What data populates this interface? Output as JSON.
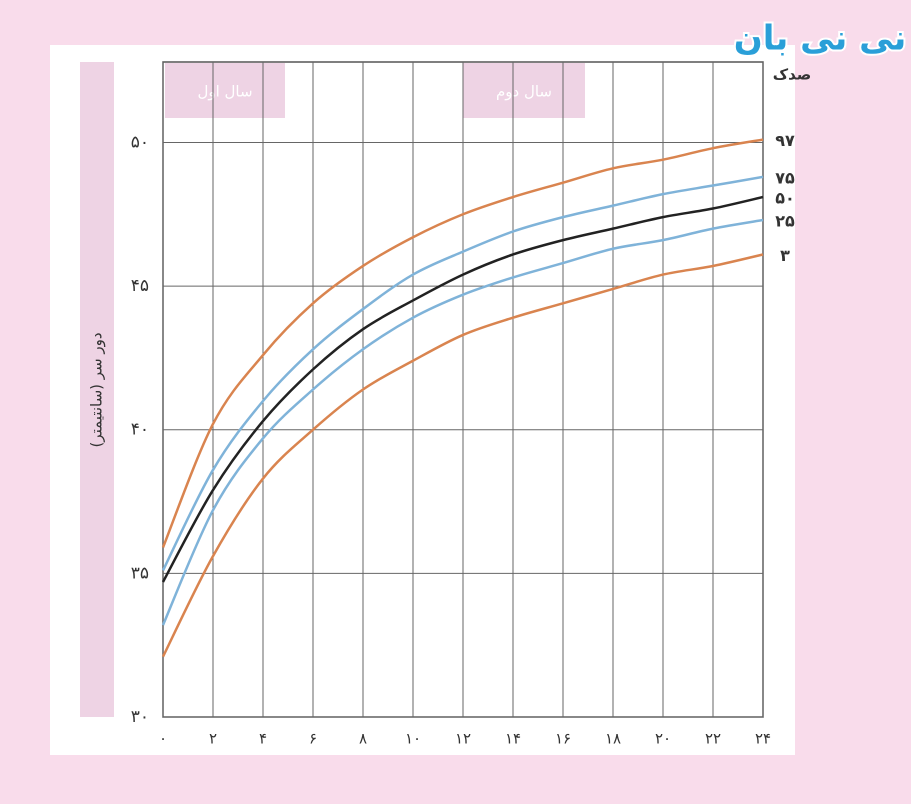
{
  "logo": "نی نی بان",
  "chart_data": {
    "type": "line",
    "y_title": "دور سر (سانتیمتر)",
    "legend_title": "صدک",
    "period_labels": [
      "سال اول",
      "سال دوم"
    ],
    "x": [
      0,
      2,
      4,
      6,
      8,
      10,
      12,
      14,
      16,
      18,
      20,
      22,
      24
    ],
    "xlim": [
      0,
      24
    ],
    "xticks": [
      {
        "value": 0,
        "label": "۰"
      },
      {
        "value": 2,
        "label": "۲"
      },
      {
        "value": 4,
        "label": "۴"
      },
      {
        "value": 6,
        "label": "۶"
      },
      {
        "value": 8,
        "label": "۸"
      },
      {
        "value": 10,
        "label": "۱۰"
      },
      {
        "value": 12,
        "label": "۱۲"
      },
      {
        "value": 14,
        "label": "۱۴"
      },
      {
        "value": 16,
        "label": "۱۶"
      },
      {
        "value": 18,
        "label": "۱۸"
      },
      {
        "value": 20,
        "label": "۲۰"
      },
      {
        "value": 22,
        "label": "۲۲"
      },
      {
        "value": 24,
        "label": "۲۴"
      }
    ],
    "ylim": [
      30,
      52.8
    ],
    "yticks": [
      {
        "value": 30,
        "label": "۳۰"
      },
      {
        "value": 35,
        "label": "۳۵"
      },
      {
        "value": 40,
        "label": "۴۰"
      },
      {
        "value": 45,
        "label": "۴۵"
      },
      {
        "value": 50,
        "label": "۵۰"
      }
    ],
    "grid": true,
    "series": [
      {
        "name": "۹۷",
        "color": "#d9844f",
        "values": [
          35.9,
          40.2,
          42.6,
          44.4,
          45.7,
          46.7,
          47.5,
          48.1,
          48.6,
          49.1,
          49.4,
          49.8,
          50.1
        ]
      },
      {
        "name": "۷۵",
        "color": "#7fb3d9",
        "values": [
          35.1,
          38.6,
          41.0,
          42.8,
          44.2,
          45.4,
          46.2,
          46.9,
          47.4,
          47.8,
          48.2,
          48.5,
          48.8
        ]
      },
      {
        "name": "۵۰",
        "color": "#222222",
        "values": [
          34.7,
          37.9,
          40.3,
          42.1,
          43.5,
          44.5,
          45.4,
          46.1,
          46.6,
          47.0,
          47.4,
          47.7,
          48.1
        ]
      },
      {
        "name": "۲۵",
        "color": "#7fb3d9",
        "values": [
          33.2,
          37.2,
          39.7,
          41.4,
          42.8,
          43.9,
          44.7,
          45.3,
          45.8,
          46.3,
          46.6,
          47.0,
          47.3
        ]
      },
      {
        "name": "۳",
        "color": "#d9844f",
        "values": [
          32.1,
          35.6,
          38.3,
          40.0,
          41.4,
          42.4,
          43.3,
          43.9,
          44.4,
          44.9,
          45.4,
          45.7,
          46.1
        ]
      }
    ]
  }
}
